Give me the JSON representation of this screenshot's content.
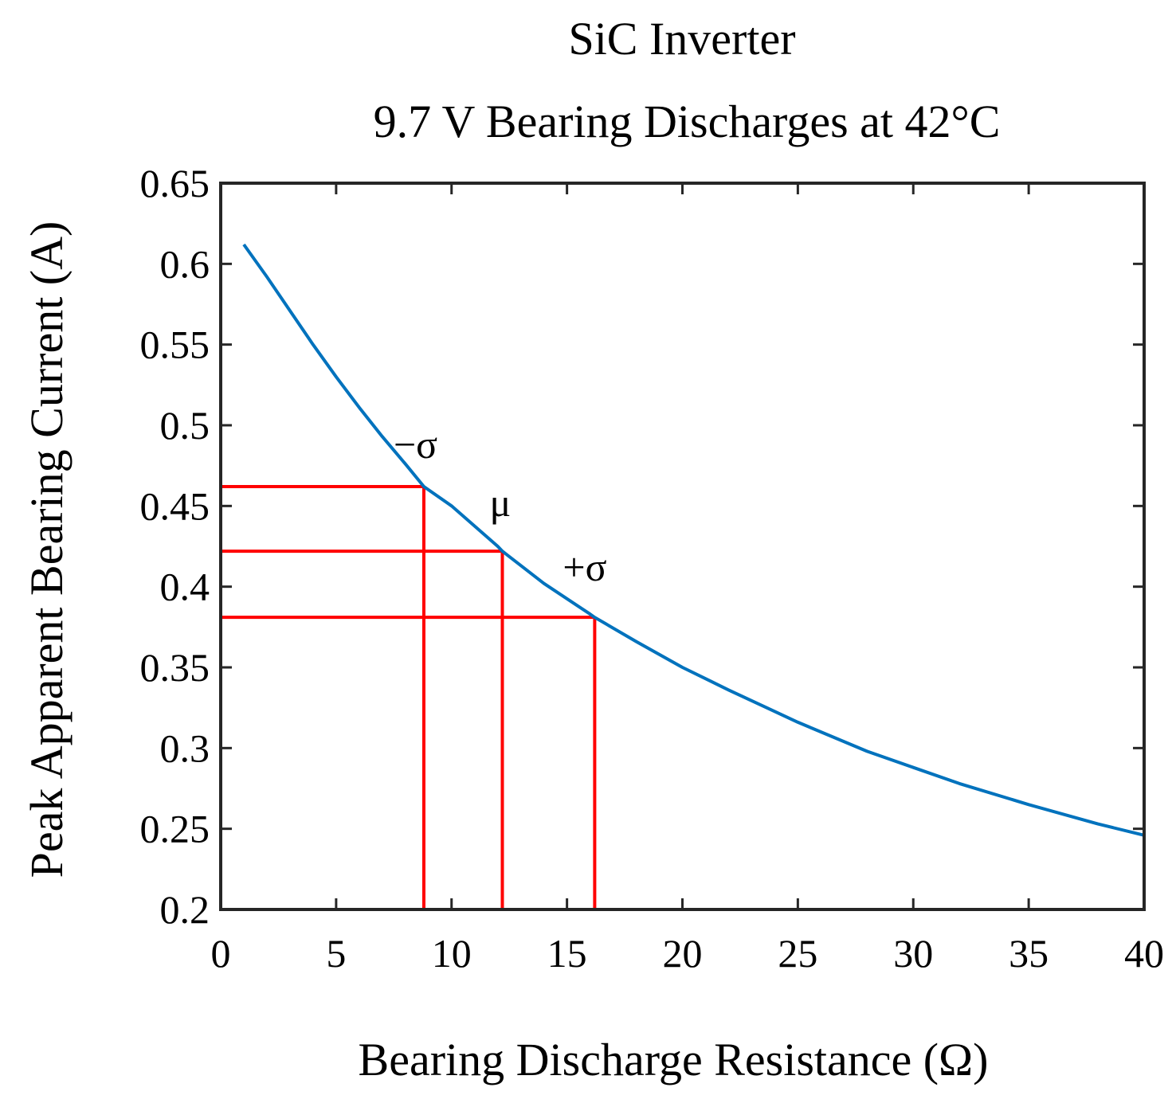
{
  "chart_data": {
    "type": "line",
    "title": [
      "SiC Inverter",
      "9.7 V Bearing Discharges at 42°C"
    ],
    "xlabel": "Bearing Discharge Resistance (Ω)",
    "ylabel": "Peak Apparent Bearing Current (A)",
    "xlim": [
      0,
      40
    ],
    "ylim": [
      0.2,
      0.65
    ],
    "xticks": [
      0,
      5,
      10,
      15,
      20,
      25,
      30,
      35,
      40
    ],
    "xtick_labels": [
      "0",
      "5",
      "10",
      "15",
      "20",
      "25",
      "30",
      "35",
      "40"
    ],
    "yticks": [
      0.2,
      0.25,
      0.3,
      0.35,
      0.4,
      0.45,
      0.5,
      0.55,
      0.6,
      0.65
    ],
    "ytick_labels": [
      "0.2",
      "0.25",
      "0.3",
      "0.35",
      "0.4",
      "0.45",
      "0.5",
      "0.55",
      "0.6",
      "0.65"
    ],
    "grid": false,
    "series": [
      {
        "name": "Peak apparent bearing current",
        "color": "#0072bd",
        "x": [
          1,
          2,
          3,
          4,
          5,
          6,
          7,
          8,
          8.8,
          10,
          12,
          12.2,
          14,
          16,
          16.2,
          18,
          20,
          22,
          25,
          28,
          30,
          32,
          35,
          38,
          40
        ],
        "y": [
          0.612,
          0.592,
          0.571,
          0.55,
          0.53,
          0.511,
          0.493,
          0.476,
          0.462,
          0.45,
          0.425,
          0.422,
          0.402,
          0.383,
          0.381,
          0.366,
          0.35,
          0.336,
          0.316,
          0.298,
          0.288,
          0.278,
          0.265,
          0.253,
          0.246
        ]
      }
    ],
    "markers": [
      {
        "label": "−σ",
        "x": 8.8,
        "y": 0.462,
        "color": "#ff0000"
      },
      {
        "label": "μ",
        "x": 12.2,
        "y": 0.422,
        "color": "#ff0000"
      },
      {
        "label": "+σ",
        "x": 16.2,
        "y": 0.381,
        "color": "#ff0000"
      }
    ]
  }
}
